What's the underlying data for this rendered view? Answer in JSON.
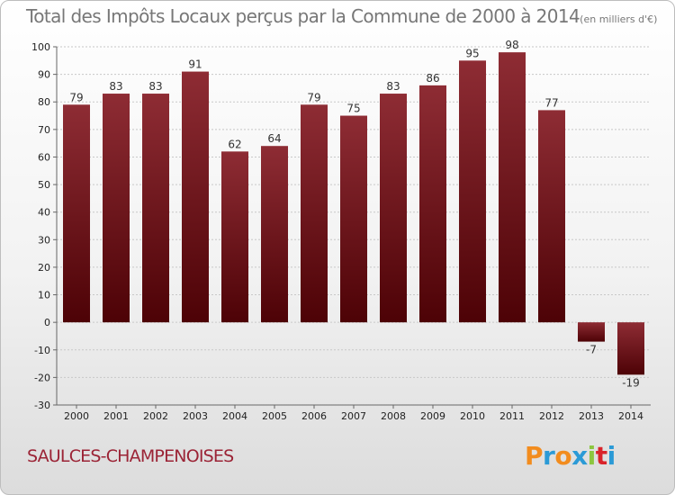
{
  "title": "Total des Impôts Locaux perçus par la Commune de 2000 à 2014",
  "title_unit": "(en milliers d'€)",
  "commune": "SAULCES-CHAMPENOISES",
  "logo": {
    "letters": [
      "P",
      "r",
      "o",
      "x",
      "i",
      "t",
      "i"
    ],
    "colors": [
      "#f28c1e",
      "#2b9ad6",
      "#f28c1e",
      "#2b9ad6",
      "#8cc63f",
      "#d9232a",
      "#2b9ad6"
    ]
  },
  "chart_data": {
    "type": "bar",
    "title": "Total des Impôts Locaux perçus par la Commune de 2000 à 2014",
    "xlabel": "",
    "ylabel": "",
    "categories": [
      "2000",
      "2001",
      "2002",
      "2003",
      "2004",
      "2005",
      "2006",
      "2007",
      "2008",
      "2009",
      "2010",
      "2011",
      "2012",
      "2013",
      "2014"
    ],
    "values": [
      79,
      83,
      83,
      91,
      62,
      64,
      79,
      75,
      83,
      86,
      95,
      98,
      77,
      -7,
      -19
    ],
    "data_labels": [
      "79",
      "83",
      "83",
      "91",
      "62",
      "64",
      "79",
      "75",
      "83",
      "86",
      "95",
      "98",
      "77",
      "-7",
      "-19"
    ],
    "ylim": [
      -30,
      100
    ],
    "yticks": [
      -30,
      -20,
      -10,
      0,
      10,
      20,
      30,
      40,
      50,
      60,
      70,
      80,
      90,
      100
    ],
    "ytick_labels": [
      "-30",
      "-20",
      "-10",
      "0",
      "10",
      "20",
      "30",
      "40",
      "50",
      "60",
      "70",
      "80",
      "90",
      "100"
    ],
    "grid": true,
    "bar_color": "#7a1a24"
  }
}
